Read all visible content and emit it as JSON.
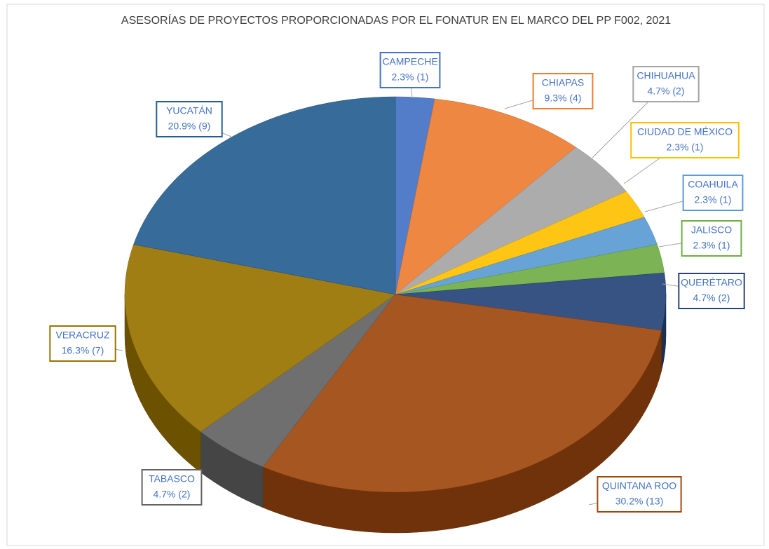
{
  "chart_data": {
    "type": "pie",
    "title": "ASESORÍAS DE PROYECTOS PROPORCIONADAS POR EL FONATUR EN EL MARCO DEL PP F002, 2021",
    "categories": [
      "CAMPECHE",
      "CHIAPAS",
      "CHIHUAHUA",
      "CIUDAD DE MÉXICO",
      "COAHUILA",
      "JALISCO",
      "QUERÉTARO",
      "QUINTANA ROO",
      "TABASCO",
      "VERACRUZ",
      "YUCATÁN"
    ],
    "values": [
      1,
      4,
      2,
      1,
      1,
      1,
      2,
      13,
      2,
      7,
      9
    ],
    "value_labels": [
      "2.3% (1)",
      "9.3% (4)",
      "4.7% (2)",
      "2.3% (1)",
      "2.3% (1)",
      "2.3% (1)",
      "4.7% (2)",
      "30.2% (13)",
      "4.7% (2)",
      "16.3% (7)",
      "20.9% (9)"
    ],
    "colors": [
      "#4472c4",
      "#ed7d31",
      "#a5a5a5",
      "#ffc000",
      "#5b9bd5",
      "#70ad47",
      "#264478",
      "#9e480e",
      "#636363",
      "#997300",
      "#255e91"
    ]
  }
}
